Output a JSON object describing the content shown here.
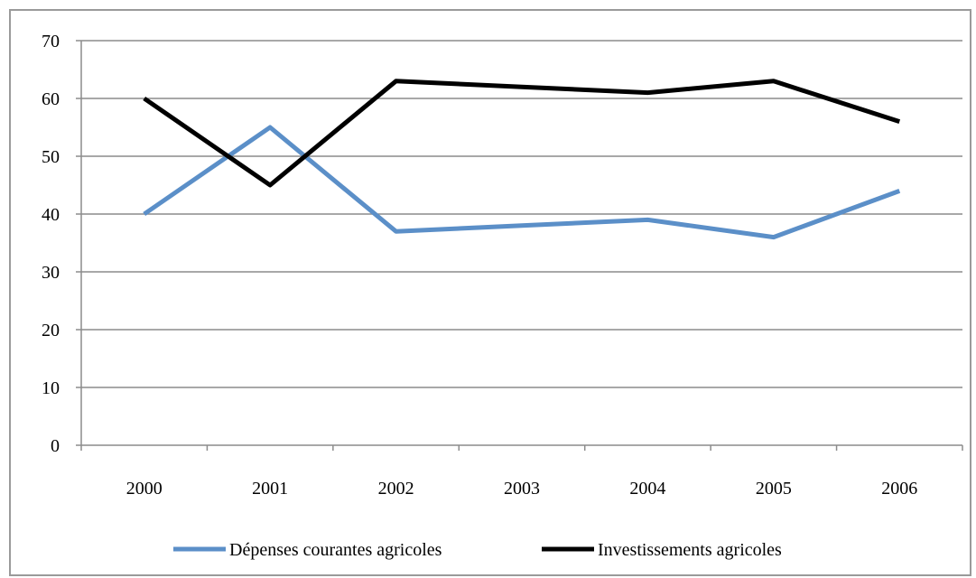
{
  "chart_data": {
    "type": "line",
    "title": "",
    "xlabel": "",
    "ylabel": "",
    "categories": [
      "2000",
      "2001",
      "2002",
      "2003",
      "2004",
      "2005",
      "2006"
    ],
    "ylim": [
      0,
      70
    ],
    "yticks": [
      0,
      10,
      20,
      30,
      40,
      50,
      60,
      70
    ],
    "grid": true,
    "legend_position": "bottom",
    "series": [
      {
        "name": "Dépenses courantes agricoles",
        "color": "#5b8fc8",
        "values": [
          40,
          55,
          37,
          38,
          39,
          36,
          44
        ]
      },
      {
        "name": "Investissements agricoles",
        "color": "#000000",
        "values": [
          60,
          45,
          63,
          62,
          61,
          63,
          56
        ]
      }
    ]
  }
}
